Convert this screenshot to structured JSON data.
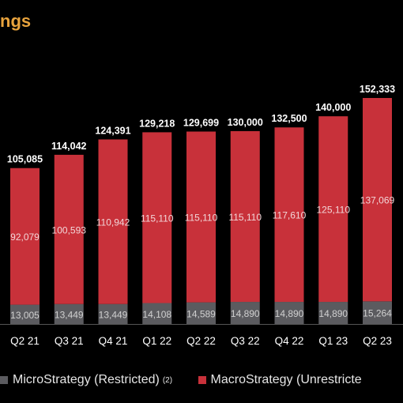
{
  "chart_data": {
    "type": "bar",
    "stacked": true,
    "title": "ngs",
    "categories": [
      "Q2 21",
      "Q3 21",
      "Q4 21",
      "Q1 22",
      "Q2 22",
      "Q3 22",
      "Q4 22",
      "Q1 23",
      "Q2 23"
    ],
    "series": [
      {
        "name": "MicroStrategy (Restricted)",
        "name_note": "(2)",
        "color": "#5b5b5f",
        "values": [
          13005,
          13449,
          13449,
          14108,
          14589,
          14890,
          14890,
          14890,
          15264
        ],
        "labels": [
          "13,005",
          "13,449",
          "13,449",
          "14,108",
          "14,589",
          "14,890",
          "14,890",
          "14,890",
          "15,264"
        ]
      },
      {
        "name": "MacroStrategy (Unrestricte",
        "color": "#c8313a",
        "values": [
          92079,
          100593,
          110942,
          115110,
          115110,
          115110,
          117610,
          125110,
          137069
        ],
        "labels": [
          "92,079",
          "100,593",
          "110,942",
          "115,110",
          "115,110",
          "115,110",
          "117,610",
          "125,110",
          "137,069"
        ]
      }
    ],
    "totals": [
      105085,
      114042,
      124391,
      129218,
      129699,
      130000,
      132500,
      140000,
      152333
    ],
    "total_labels": [
      "105,085",
      "114,042",
      "124,391",
      "129,218",
      "129,699",
      "130,000",
      "132,500",
      "140,000",
      "152,333"
    ],
    "ylim": [
      0,
      152333
    ],
    "grid": false,
    "legend_position": "bottom"
  }
}
